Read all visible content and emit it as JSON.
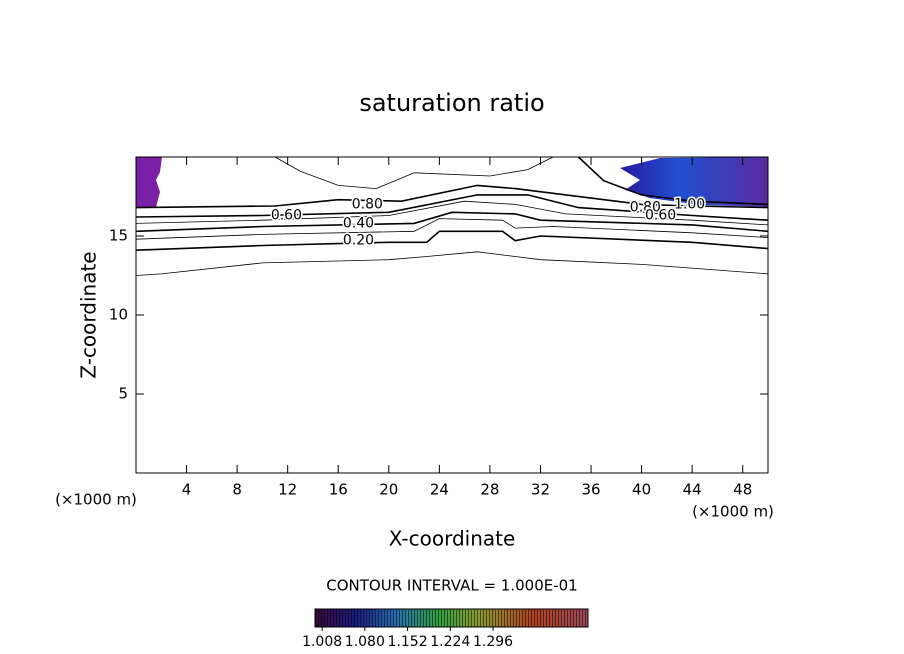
{
  "chart_data": {
    "type": "contour",
    "title": "saturation ratio",
    "xlabel": "X-coordinate",
    "ylabel": "Z-coordinate",
    "x_unit_left": "(×1000 m)",
    "x_unit_right": "(×1000 m)",
    "xlim": [
      0,
      50
    ],
    "ylim": [
      0,
      20
    ],
    "xticks": [
      4,
      8,
      12,
      16,
      20,
      24,
      28,
      32,
      36,
      40,
      44,
      48
    ],
    "yticks": [
      5,
      10,
      15
    ],
    "contours": [
      {
        "level": 0.1,
        "x": [
          0,
          2,
          10,
          20,
          23,
          27,
          28,
          32,
          40,
          50
        ],
        "y": [
          12.5,
          12.6,
          13.3,
          13.5,
          13.7,
          14.0,
          13.9,
          13.5,
          13.2,
          12.6
        ]
      },
      {
        "level": 0.2,
        "x": [
          0,
          10,
          20,
          23,
          24,
          29,
          30,
          32,
          44,
          50
        ],
        "y": [
          14.1,
          14.4,
          14.6,
          14.6,
          15.3,
          15.3,
          14.7,
          15.0,
          14.6,
          14.2
        ]
      },
      {
        "level": 0.3,
        "x": [
          0,
          10,
          22,
          24,
          29,
          30,
          33,
          44,
          50
        ],
        "y": [
          14.8,
          15.1,
          15.3,
          16.1,
          16.0,
          15.5,
          15.6,
          15.2,
          14.9
        ]
      },
      {
        "level": 0.4,
        "x": [
          0,
          10,
          22,
          25,
          30,
          32,
          44,
          50
        ],
        "y": [
          15.3,
          15.6,
          15.8,
          16.5,
          16.4,
          16.0,
          15.7,
          15.3
        ]
      },
      {
        "level": 0.5,
        "x": [
          0,
          10,
          20,
          26,
          30,
          34,
          44,
          50
        ],
        "y": [
          15.8,
          16.0,
          16.3,
          17.2,
          17.0,
          16.4,
          16.0,
          15.7
        ]
      },
      {
        "level": 0.6,
        "x": [
          0,
          10,
          20,
          27,
          31,
          35,
          44,
          50
        ],
        "y": [
          16.2,
          16.3,
          16.5,
          17.6,
          17.6,
          16.8,
          16.3,
          16.0
        ]
      },
      {
        "level": 0.8,
        "x": [
          0,
          11,
          16,
          21,
          27,
          30,
          33,
          36,
          40,
          44,
          50
        ],
        "y": [
          16.8,
          16.9,
          17.3,
          17.2,
          18.2,
          18.0,
          17.7,
          17.4,
          17.0,
          16.9,
          16.8
        ]
      },
      {
        "level": 0.9,
        "x": [
          11,
          13,
          16,
          19,
          22,
          28,
          31,
          33
        ],
        "y": [
          20,
          19.1,
          18.2,
          18.0,
          19.0,
          18.8,
          19.2,
          20
        ]
      },
      {
        "level": 1.0,
        "x": [
          35,
          37,
          40,
          44,
          50
        ],
        "y": [
          20,
          18.5,
          17.6,
          17.2,
          17.0
        ]
      }
    ],
    "contour_labels": [
      {
        "value": 0.8,
        "label": "0.80",
        "x": 18.3,
        "y": 17.0
      },
      {
        "value": 0.6,
        "label": "0.60",
        "x": 11.9,
        "y": 16.3
      },
      {
        "value": 0.4,
        "label": "0.40",
        "x": 17.6,
        "y": 15.8
      },
      {
        "value": 0.2,
        "label": "0.20",
        "x": 17.6,
        "y": 14.7
      },
      {
        "value": 0.8,
        "label": "0.80",
        "x": 40.3,
        "y": 16.8
      },
      {
        "value": 1.0,
        "label": "1.00",
        "x": 43.8,
        "y": 17.0
      },
      {
        "value": 0.6,
        "label": "0.60",
        "x": 41.5,
        "y": 16.3
      }
    ],
    "contour_interval": "CONTOUR INTERVAL = 1.000E-01",
    "colorbar_lim": [
      0.996,
      1.456
    ],
    "colorbar_ticks": [
      {
        "value": 1.008,
        "label": "1.008"
      },
      {
        "value": 1.08,
        "label": "1.080"
      },
      {
        "value": 1.152,
        "label": "1.152"
      },
      {
        "value": 1.224,
        "label": "1.224"
      },
      {
        "value": 1.296,
        "label": "1.296"
      }
    ]
  }
}
